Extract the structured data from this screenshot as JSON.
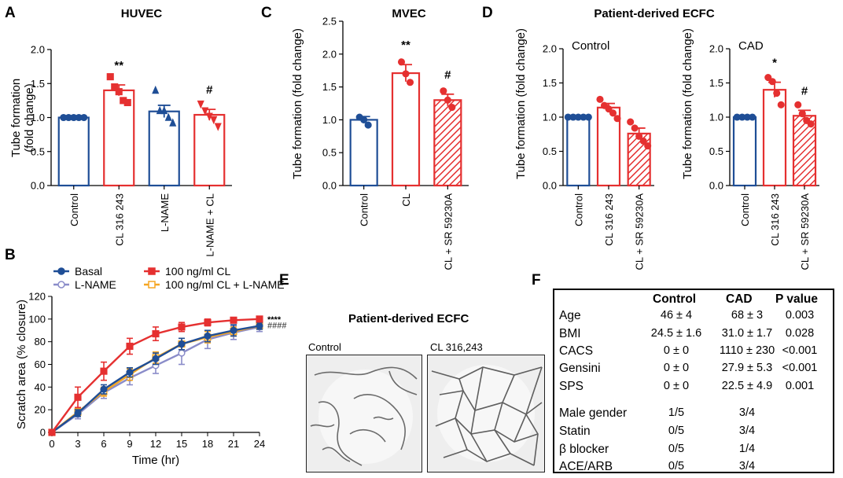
{
  "colors": {
    "blue": "#1f4e96",
    "red": "#e53030",
    "lavender": "#8a8cc9",
    "orange": "#f5a623",
    "black": "#000000"
  },
  "panels": {
    "A": "A",
    "B": "B",
    "C": "C",
    "D": "D",
    "E": "E",
    "F": "F"
  },
  "chart_data": [
    {
      "id": "A",
      "type": "bar",
      "title": "HUVEC",
      "ylabel": "Tube formation\n(fold change)",
      "ylim": [
        0,
        2.0
      ],
      "yticks": [
        0,
        0.5,
        1.0,
        1.5,
        2.0
      ],
      "ytick_labels": [
        "0.0",
        "0.5",
        "1.0",
        "1.5",
        "2.0"
      ],
      "categories": [
        "Control",
        "CL 316 243",
        "L-NAME",
        "L-NAME + CL"
      ],
      "values": [
        1.0,
        1.4,
        1.09,
        1.04
      ],
      "errors": [
        0,
        0.08,
        0.09,
        0.08
      ],
      "points": [
        [
          1,
          1,
          1,
          1,
          1
        ],
        [
          1.6,
          1.45,
          1.38,
          1.25,
          1.22
        ],
        [
          1.4,
          1.1,
          1.1,
          1.0,
          0.92
        ],
        [
          1.2,
          1.1,
          1.02,
          0.97,
          0.87
        ]
      ],
      "annotations": [
        "",
        "**",
        "",
        "#"
      ],
      "colors": [
        "blue",
        "red",
        "blue",
        "red"
      ],
      "hatched": [
        false,
        false,
        false,
        false
      ],
      "markers": [
        "circle",
        "square",
        "triangle",
        "triangle-down"
      ]
    },
    {
      "id": "C",
      "type": "bar",
      "title": "MVEC",
      "ylabel": "Tube formation (fold change)",
      "ylim": [
        0,
        2.5
      ],
      "yticks": [
        0,
        0.5,
        1.0,
        1.5,
        2.0,
        2.5
      ],
      "ytick_labels": [
        "0.0",
        "0.5",
        "1.0",
        "1.5",
        "2.0",
        "2.5"
      ],
      "categories": [
        "Control",
        "CL",
        "CL + SR 59230A"
      ],
      "values": [
        1.0,
        1.71,
        1.3
      ],
      "errors": [
        0.05,
        0.13,
        0.09
      ],
      "points": [
        [
          1.04,
          1.0,
          0.92
        ],
        [
          1.88,
          1.7,
          1.57
        ],
        [
          1.44,
          1.3,
          1.19
        ]
      ],
      "annotations": [
        "",
        "**",
        "#"
      ],
      "colors": [
        "blue",
        "red",
        "red"
      ],
      "hatched": [
        false,
        false,
        true
      ],
      "markers": [
        "circle",
        "circle",
        "circle"
      ]
    },
    {
      "id": "D1",
      "type": "bar",
      "title": "Patient-derived ECFC",
      "inner_label": "Control",
      "ylabel": "Tube formation (fold change)",
      "ylim": [
        0,
        2.0
      ],
      "yticks": [
        0,
        0.5,
        1.0,
        1.5,
        2.0
      ],
      "ytick_labels": [
        "0.0",
        "0.5",
        "1.0",
        "1.5",
        "2.0"
      ],
      "categories": [
        "Control",
        "CL 316 243",
        "CL + SR 59230A"
      ],
      "values": [
        1.0,
        1.14,
        0.76
      ],
      "errors": [
        0,
        0.06,
        0.08
      ],
      "points": [
        [
          1,
          1,
          1,
          1,
          1
        ],
        [
          1.26,
          1.17,
          1.12,
          1.06,
          0.98
        ],
        [
          0.93,
          0.84,
          0.72,
          0.65,
          0.58
        ]
      ],
      "annotations": [
        "",
        "",
        ""
      ],
      "colors": [
        "blue",
        "red",
        "red"
      ],
      "hatched": [
        false,
        false,
        true
      ],
      "markers": [
        "circle",
        "circle",
        "circle"
      ]
    },
    {
      "id": "D2",
      "type": "bar",
      "title": "",
      "inner_label": "CAD",
      "ylabel": "Tube formation (fold change)",
      "ylim": [
        0,
        2.0
      ],
      "yticks": [
        0,
        0.5,
        1.0,
        1.5,
        2.0
      ],
      "ytick_labels": [
        "0.0",
        "0.5",
        "1.0",
        "1.5",
        "2.0"
      ],
      "categories": [
        "Control",
        "CL 316 243",
        "CL + SR 59230A"
      ],
      "values": [
        1.0,
        1.4,
        1.02
      ],
      "errors": [
        0,
        0.11,
        0.08
      ],
      "points": [
        [
          1,
          1,
          1,
          1
        ],
        [
          1.58,
          1.52,
          1.35,
          1.18
        ],
        [
          1.18,
          1.05,
          0.95,
          0.9
        ]
      ],
      "annotations": [
        "",
        "*",
        "#"
      ],
      "colors": [
        "blue",
        "red",
        "red"
      ],
      "hatched": [
        false,
        false,
        true
      ],
      "markers": [
        "circle",
        "circle",
        "circle"
      ]
    },
    {
      "id": "B",
      "type": "line",
      "xlabel": "Time (hr)",
      "ylabel": "Scratch area (% closure)",
      "xlim": [
        0,
        24
      ],
      "ylim": [
        0,
        120
      ],
      "xticks": [
        0,
        3,
        6,
        9,
        12,
        15,
        18,
        21,
        24
      ],
      "yticks": [
        0,
        20,
        40,
        60,
        80,
        100,
        120
      ],
      "series": [
        {
          "name": "Basal",
          "color": "blue",
          "marker": "circle",
          "filled": true,
          "x": [
            0,
            3,
            6,
            9,
            12,
            15,
            18,
            21,
            24
          ],
          "y": [
            0,
            17,
            38,
            53,
            65,
            78,
            85,
            90,
            94
          ],
          "err": [
            0,
            3,
            4,
            4,
            5,
            5,
            5,
            5,
            3
          ]
        },
        {
          "name": "L-NAME",
          "color": "lavender",
          "marker": "circle",
          "filled": false,
          "x": [
            0,
            3,
            6,
            9,
            12,
            15,
            18,
            21,
            24
          ],
          "y": [
            0,
            16,
            35,
            48,
            59,
            70,
            82,
            88,
            93
          ],
          "err": [
            0,
            4,
            5,
            6,
            7,
            10,
            8,
            6,
            4
          ]
        },
        {
          "name": "100 ng/ml CL",
          "color": "red",
          "marker": "square",
          "filled": true,
          "x": [
            0,
            3,
            6,
            9,
            12,
            15,
            18,
            21,
            24
          ],
          "y": [
            0,
            31,
            54,
            76,
            87,
            93,
            97,
            99,
            100
          ],
          "err": [
            0,
            9,
            8,
            7,
            6,
            4,
            3,
            2,
            1
          ]
        },
        {
          "name": "100 ng/ml CL + L-NAME",
          "color": "orange",
          "marker": "square",
          "filled": false,
          "x": [
            0,
            3,
            6,
            9,
            12,
            15,
            18,
            21,
            24
          ],
          "y": [
            0,
            18,
            36,
            51,
            66,
            78,
            84,
            89,
            94
          ],
          "err": [
            0,
            3,
            4,
            5,
            5,
            5,
            5,
            4,
            3
          ]
        }
      ],
      "annotations": [
        "****",
        "####"
      ]
    }
  ],
  "panel_e": {
    "title": "Patient-derived ECFC",
    "left_label": "Control",
    "right_label": "CL 316,243"
  },
  "table_f": {
    "headers": [
      "Control",
      "CAD",
      "P value"
    ],
    "rows": [
      {
        "label": "Age",
        "control": "46 ± 4",
        "cad": "68 ± 3",
        "p": "0.003"
      },
      {
        "label": "BMI",
        "control": "24.5 ± 1.6",
        "cad": "31.0 ± 1.7",
        "p": "0.028"
      },
      {
        "label": "CACS",
        "control": "0 ± 0",
        "cad": "1110 ± 230",
        "p": "<0.001"
      },
      {
        "label": "Gensini",
        "control": "0 ± 0",
        "cad": "27.9 ± 5.3",
        "p": "<0.001"
      },
      {
        "label": "SPS",
        "control": "0 ± 0",
        "cad": "22.5 ± 4.9",
        "p": "0.001"
      },
      {
        "label": "Male gender",
        "control": "1/5",
        "cad": "3/4",
        "p": ""
      },
      {
        "label": "Statin",
        "control": "0/5",
        "cad": "3/4",
        "p": ""
      },
      {
        "label": "β blocker",
        "control": "0/5",
        "cad": "1/4",
        "p": ""
      },
      {
        "label": "ACE/ARB",
        "control": "0/5",
        "cad": "3/4",
        "p": ""
      }
    ]
  }
}
